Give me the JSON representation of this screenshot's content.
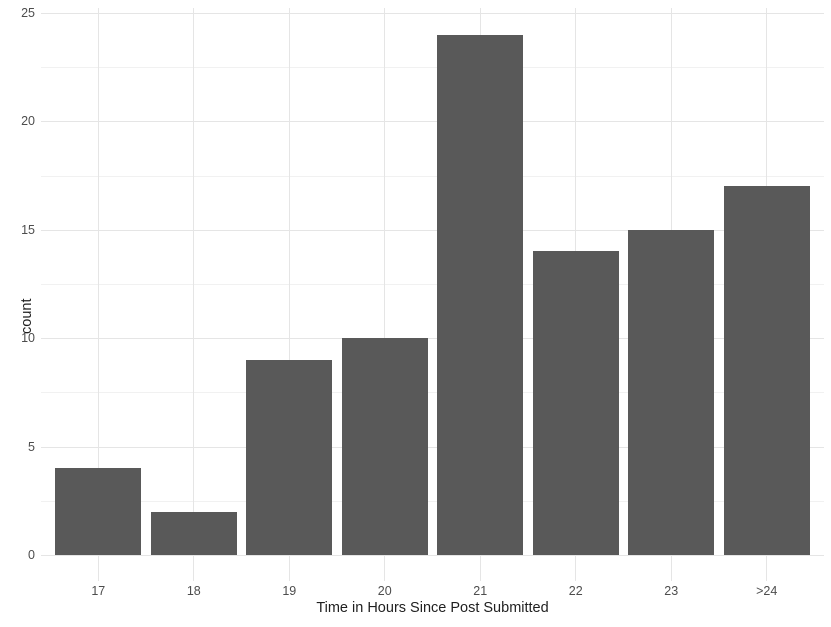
{
  "chart_data": {
    "type": "bar",
    "title": "",
    "xlabel": "Time in Hours Since Post Submitted",
    "ylabel": "count",
    "categories": [
      "17",
      "18",
      "19",
      "20",
      "21",
      "22",
      "23",
      ">24"
    ],
    "values": [
      4,
      2,
      9,
      10,
      24,
      14,
      15,
      17
    ],
    "ylim": [
      0,
      25
    ],
    "y_major_ticks": [
      0,
      5,
      10,
      15,
      20,
      25
    ],
    "y_minor_ticks": [
      2.5,
      7.5,
      12.5,
      17.5,
      22.5
    ],
    "grid": "horizontal major+minor, vertical major at category centers",
    "legend": "none",
    "colors": {
      "bar_fill": "#595959",
      "background": "#ffffff",
      "grid_major": "#e5e5e5",
      "grid_minor": "#f1f1f1",
      "tick_text": "#4d4d4d",
      "axis_title_text": "#1f1f1f"
    }
  }
}
